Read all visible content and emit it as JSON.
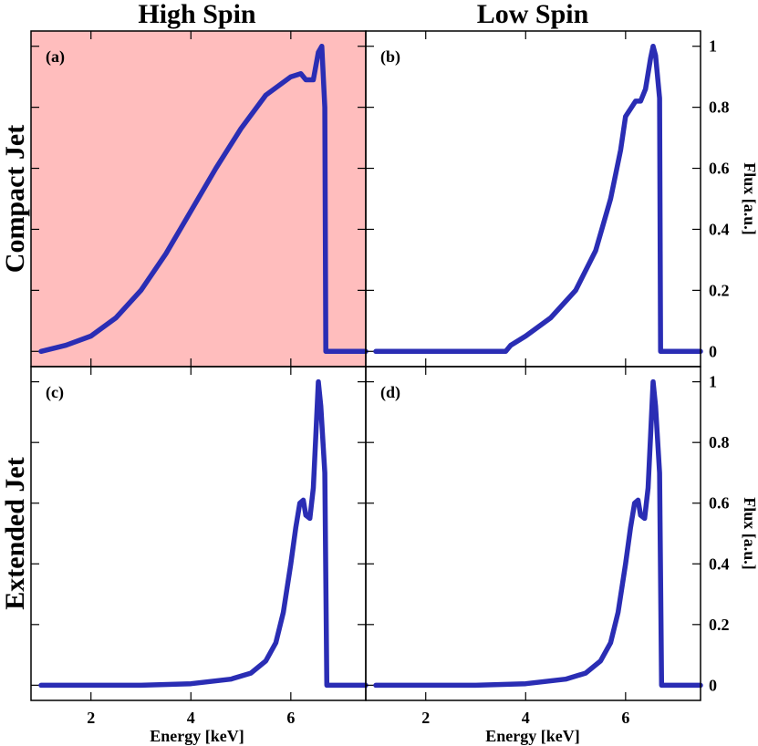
{
  "figure": {
    "col_titles": [
      "High Spin",
      "Low Spin"
    ],
    "row_titles": [
      "Compact Jet",
      "Extended Jet"
    ],
    "xlabel": "Energy [keV]",
    "ylabel": "Flux [a.u.]",
    "colors": {
      "curve": "#2a2db4",
      "highlight": "#ffbdbd",
      "frame": "#000000"
    }
  },
  "chart_data": [
    {
      "type": "line",
      "panel": "(a)",
      "highlighted": true,
      "xlim": [
        0.8,
        7.5
      ],
      "ylim": [
        -0.05,
        1.05
      ],
      "xticks": [
        2,
        4,
        6
      ],
      "yticks": [
        0,
        0.2,
        0.4,
        0.6,
        0.8,
        1
      ],
      "x": [
        1.0,
        1.5,
        2.0,
        2.5,
        3.0,
        3.5,
        4.0,
        4.5,
        5.0,
        5.5,
        6.0,
        6.2,
        6.3,
        6.45,
        6.55,
        6.62,
        6.68,
        6.7,
        6.72,
        7.0,
        7.5
      ],
      "y": [
        0.0,
        0.02,
        0.05,
        0.11,
        0.2,
        0.32,
        0.46,
        0.6,
        0.73,
        0.84,
        0.9,
        0.91,
        0.89,
        0.89,
        0.98,
        1.0,
        0.8,
        0.0,
        0.0,
        0.0,
        0.0
      ]
    },
    {
      "type": "line",
      "panel": "(b)",
      "highlighted": false,
      "xlim": [
        0.8,
        7.5
      ],
      "ylim": [
        -0.05,
        1.05
      ],
      "xticks": [
        2,
        4,
        6
      ],
      "yticks": [
        0,
        0.2,
        0.4,
        0.6,
        0.8,
        1
      ],
      "x": [
        1.0,
        3.6,
        3.7,
        4.0,
        4.5,
        5.0,
        5.4,
        5.7,
        5.9,
        6.0,
        6.2,
        6.3,
        6.4,
        6.5,
        6.55,
        6.6,
        6.68,
        6.7,
        6.72,
        7.5
      ],
      "y": [
        0.0,
        0.0,
        0.02,
        0.05,
        0.11,
        0.2,
        0.33,
        0.5,
        0.66,
        0.77,
        0.82,
        0.82,
        0.86,
        0.96,
        1.0,
        0.97,
        0.83,
        0.0,
        0.0,
        0.0
      ]
    },
    {
      "type": "line",
      "panel": "(c)",
      "highlighted": false,
      "xlim": [
        0.8,
        7.5
      ],
      "ylim": [
        -0.05,
        1.05
      ],
      "xticks": [
        2,
        4,
        6
      ],
      "yticks": [
        0,
        0.2,
        0.4,
        0.6,
        0.8,
        1
      ],
      "x": [
        1.0,
        3.0,
        4.0,
        4.8,
        5.2,
        5.5,
        5.7,
        5.85,
        6.0,
        6.1,
        6.18,
        6.25,
        6.3,
        6.38,
        6.45,
        6.5,
        6.55,
        6.6,
        6.68,
        6.72,
        7.5
      ],
      "y": [
        0.0,
        0.0,
        0.005,
        0.02,
        0.04,
        0.08,
        0.14,
        0.24,
        0.4,
        0.52,
        0.6,
        0.61,
        0.56,
        0.55,
        0.65,
        0.82,
        1.0,
        0.92,
        0.7,
        0.0,
        0.0
      ]
    },
    {
      "type": "line",
      "panel": "(d)",
      "highlighted": false,
      "xlim": [
        0.8,
        7.5
      ],
      "ylim": [
        -0.05,
        1.05
      ],
      "xticks": [
        2,
        4,
        6
      ],
      "yticks": [
        0,
        0.2,
        0.4,
        0.6,
        0.8,
        1
      ],
      "x": [
        1.0,
        3.0,
        4.0,
        4.8,
        5.2,
        5.5,
        5.7,
        5.85,
        6.0,
        6.1,
        6.18,
        6.25,
        6.3,
        6.38,
        6.45,
        6.5,
        6.55,
        6.6,
        6.68,
        6.72,
        7.5
      ],
      "y": [
        0.0,
        0.0,
        0.005,
        0.02,
        0.04,
        0.08,
        0.14,
        0.24,
        0.4,
        0.52,
        0.6,
        0.61,
        0.56,
        0.55,
        0.65,
        0.82,
        1.0,
        0.92,
        0.7,
        0.0,
        0.0
      ]
    }
  ]
}
